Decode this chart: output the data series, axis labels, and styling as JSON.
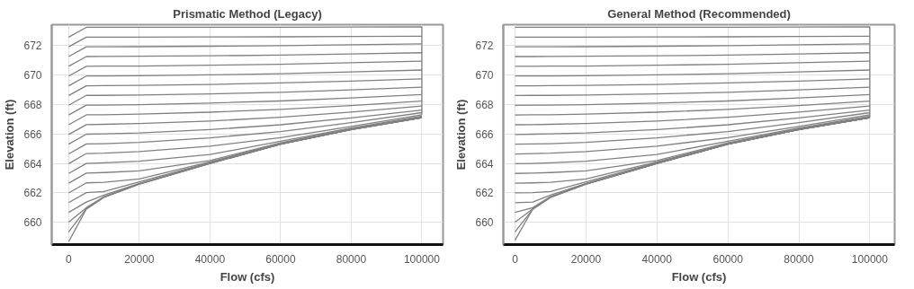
{
  "chart_data": [
    {
      "type": "line",
      "title": "Prismatic Method (Legacy)",
      "xlabel": "Flow (cfs)",
      "ylabel": "Elevation (ft)",
      "x": [
        0,
        5000,
        10000,
        20000,
        40000,
        60000,
        80000,
        100000
      ],
      "xlim": [
        -4800,
        106000
      ],
      "ylim": [
        658.5,
        673.4
      ],
      "xticks": [
        0,
        20000,
        40000,
        60000,
        80000,
        100000
      ],
      "yticks": [
        660,
        662,
        664,
        666,
        668,
        670,
        672
      ],
      "grid": true,
      "series": [
        {
          "color": "#808080",
          "x": [
            0,
            5000,
            10000,
            20000,
            40000,
            60000,
            80000,
            100000,
            100000
          ],
          "values": [
            672.56,
            673.22,
            673.22,
            673.22,
            673.23,
            673.23,
            673.24,
            673.25,
            667.3
          ]
        },
        {
          "color": "#808080",
          "values": [
            671.9,
            672.56,
            672.56,
            672.56,
            672.57,
            672.58,
            672.6,
            672.62
          ]
        },
        {
          "color": "#808080",
          "values": [
            671.24,
            671.9,
            671.9,
            671.91,
            671.94,
            671.98,
            672.04,
            672.1
          ]
        },
        {
          "color": "#808080",
          "values": [
            670.58,
            671.24,
            671.25,
            671.26,
            671.29,
            671.34,
            671.42,
            671.5
          ]
        },
        {
          "color": "#808080",
          "values": [
            669.92,
            670.58,
            670.59,
            670.6,
            670.65,
            670.72,
            670.82,
            670.93
          ]
        },
        {
          "color": "#808080",
          "values": [
            669.26,
            669.92,
            669.93,
            669.94,
            670.0,
            670.08,
            670.2,
            670.33
          ]
        },
        {
          "color": "#808080",
          "values": [
            668.6,
            669.26,
            669.27,
            669.29,
            669.35,
            669.45,
            669.58,
            669.73
          ]
        },
        {
          "color": "#808080",
          "values": [
            667.94,
            668.61,
            668.61,
            668.63,
            668.71,
            668.82,
            668.98,
            669.16
          ]
        },
        {
          "color": "#808080",
          "values": [
            667.28,
            667.95,
            667.95,
            667.98,
            668.09,
            668.23,
            668.44,
            668.67
          ]
        },
        {
          "color": "#808080",
          "values": [
            666.62,
            667.29,
            667.3,
            667.34,
            667.47,
            667.66,
            667.92,
            668.22
          ]
        },
        {
          "color": "#808080",
          "values": [
            665.96,
            666.63,
            666.65,
            666.7,
            666.87,
            667.13,
            667.48,
            667.89
          ]
        },
        {
          "color": "#808080",
          "values": [
            665.3,
            665.98,
            666.0,
            666.06,
            666.29,
            666.62,
            667.08,
            667.62
          ]
        },
        {
          "color": "#808080",
          "values": [
            664.64,
            665.32,
            665.34,
            665.43,
            665.73,
            666.16,
            666.76,
            667.44
          ]
        },
        {
          "color": "#808080",
          "values": [
            663.98,
            664.67,
            664.69,
            664.8,
            665.17,
            665.75,
            666.5,
            667.3
          ]
        },
        {
          "color": "#808080",
          "values": [
            663.32,
            664.0,
            664.04,
            664.15,
            664.6,
            665.5,
            666.4,
            667.2
          ]
        },
        {
          "color": "#808080",
          "values": [
            662.66,
            663.34,
            663.38,
            663.5,
            664.2,
            665.4,
            666.35,
            667.15
          ]
        },
        {
          "color": "#808080",
          "values": [
            662.0,
            662.68,
            662.72,
            662.95,
            664.1,
            665.35,
            666.32,
            667.12
          ]
        },
        {
          "color": "#808080",
          "values": [
            661.34,
            662.02,
            662.1,
            662.75,
            664.05,
            665.32,
            666.3,
            667.1
          ]
        },
        {
          "color": "#808080",
          "values": [
            660.68,
            661.38,
            661.85,
            662.65,
            664.02,
            665.3,
            666.3,
            667.1
          ]
        },
        {
          "color": "#808080",
          "values": [
            660.02,
            661.0,
            661.75,
            662.62,
            664.0,
            665.3,
            666.3,
            667.1
          ]
        },
        {
          "color": "#808080",
          "values": [
            659.36,
            660.92,
            661.72,
            662.6,
            664.0,
            665.3,
            666.3,
            667.1
          ]
        },
        {
          "color": "#808080",
          "values": [
            658.7,
            660.9,
            661.7,
            662.6,
            664.0,
            665.3,
            666.3,
            667.1
          ]
        }
      ]
    },
    {
      "type": "line",
      "title": "General Method (Recommended)",
      "xlabel": "Flow (cfs)",
      "ylabel": "Elevation (ft)",
      "x": [
        0,
        5000,
        10000,
        20000,
        40000,
        60000,
        80000,
        100000
      ],
      "xlim": [
        -3300,
        107000
      ],
      "ylim": [
        658.5,
        673.4
      ],
      "xticks": [
        0,
        20000,
        40000,
        60000,
        80000,
        100000
      ],
      "yticks": [
        660,
        662,
        664,
        666,
        668,
        670,
        672
      ],
      "grid": true,
      "series": [
        {
          "color": "#808080",
          "x": [
            0,
            5000,
            10000,
            20000,
            40000,
            60000,
            80000,
            100000,
            100000
          ],
          "values": [
            673.22,
            673.22,
            673.22,
            673.22,
            673.23,
            673.23,
            673.24,
            673.25,
            667.1
          ]
        },
        {
          "color": "#808080",
          "values": [
            672.56,
            672.56,
            672.56,
            672.56,
            672.57,
            672.58,
            672.6,
            672.62
          ]
        },
        {
          "color": "#808080",
          "values": [
            671.9,
            671.9,
            671.9,
            671.91,
            671.94,
            671.98,
            672.04,
            672.1
          ]
        },
        {
          "color": "#808080",
          "values": [
            671.24,
            671.24,
            671.25,
            671.26,
            671.29,
            671.34,
            671.42,
            671.5
          ]
        },
        {
          "color": "#808080",
          "values": [
            670.58,
            670.58,
            670.59,
            670.6,
            670.65,
            670.72,
            670.82,
            670.93
          ]
        },
        {
          "color": "#808080",
          "values": [
            669.92,
            669.92,
            669.93,
            669.94,
            670.0,
            670.08,
            670.2,
            670.33
          ]
        },
        {
          "color": "#808080",
          "values": [
            669.26,
            669.26,
            669.27,
            669.29,
            669.35,
            669.45,
            669.58,
            669.73
          ]
        },
        {
          "color": "#808080",
          "values": [
            668.6,
            668.61,
            668.61,
            668.63,
            668.71,
            668.82,
            668.98,
            669.16
          ]
        },
        {
          "color": "#808080",
          "values": [
            667.94,
            667.95,
            667.95,
            667.98,
            668.09,
            668.23,
            668.44,
            668.67
          ]
        },
        {
          "color": "#808080",
          "values": [
            667.28,
            667.29,
            667.3,
            667.34,
            667.47,
            667.66,
            667.92,
            668.22
          ]
        },
        {
          "color": "#808080",
          "values": [
            666.62,
            666.63,
            666.65,
            666.7,
            666.87,
            667.13,
            667.48,
            667.89
          ]
        },
        {
          "color": "#808080",
          "values": [
            665.96,
            665.98,
            666.0,
            666.06,
            666.29,
            666.62,
            667.08,
            667.62
          ]
        },
        {
          "color": "#808080",
          "values": [
            665.3,
            665.32,
            665.34,
            665.43,
            665.73,
            666.16,
            666.76,
            667.44
          ]
        },
        {
          "color": "#808080",
          "values": [
            664.64,
            664.67,
            664.69,
            664.8,
            665.17,
            665.75,
            666.5,
            667.3
          ]
        },
        {
          "color": "#808080",
          "values": [
            663.98,
            664.0,
            664.04,
            664.15,
            664.6,
            665.5,
            666.4,
            667.2
          ]
        },
        {
          "color": "#808080",
          "values": [
            663.32,
            663.34,
            663.38,
            663.5,
            664.2,
            665.4,
            666.35,
            667.15
          ]
        },
        {
          "color": "#808080",
          "values": [
            662.66,
            662.68,
            662.72,
            662.95,
            664.1,
            665.35,
            666.32,
            667.12
          ]
        },
        {
          "color": "#808080",
          "values": [
            662.0,
            662.02,
            662.1,
            662.75,
            664.05,
            665.32,
            666.3,
            667.1
          ]
        },
        {
          "color": "#808080",
          "values": [
            661.34,
            661.38,
            661.85,
            662.65,
            664.02,
            665.3,
            666.3,
            667.1
          ]
        },
        {
          "color": "#808080",
          "values": [
            660.68,
            661.0,
            661.75,
            662.62,
            664.0,
            665.3,
            666.3,
            667.1
          ]
        },
        {
          "color": "#808080",
          "values": [
            660.02,
            660.92,
            661.72,
            662.6,
            664.0,
            665.3,
            666.3,
            667.1
          ]
        },
        {
          "color": "#808080",
          "values": [
            659.36,
            660.9,
            661.7,
            662.6,
            664.0,
            665.3,
            666.3,
            667.1
          ]
        },
        {
          "color": "#808080",
          "values": [
            658.8,
            660.9,
            661.7,
            662.6,
            664.0,
            665.3,
            666.3,
            667.1
          ]
        }
      ]
    }
  ]
}
